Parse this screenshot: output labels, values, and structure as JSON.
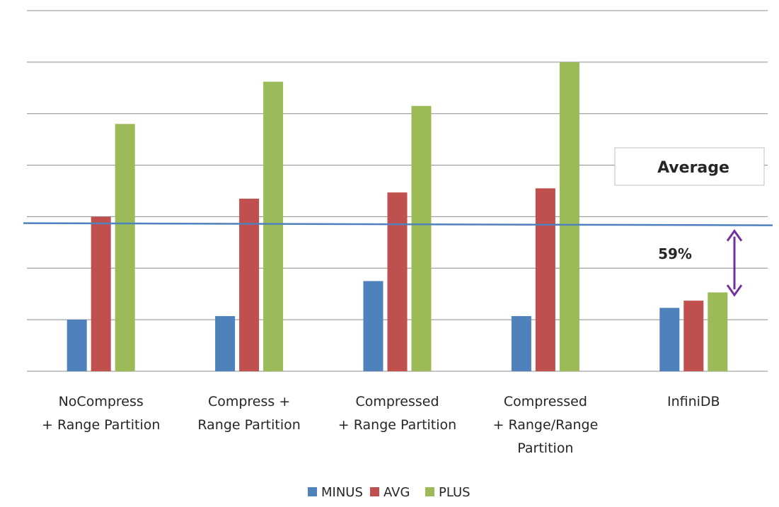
{
  "chart_data": {
    "type": "bar",
    "title": "",
    "xlabel": "",
    "ylabel": "",
    "ylim": [
      0,
      7
    ],
    "grid": true,
    "legend_position": "bottom-center",
    "categories": [
      [
        "NoCompress",
        "+ Range Partition"
      ],
      [
        "Compress +",
        "Range Partition"
      ],
      [
        "Compressed",
        "+ Range Partition"
      ],
      [
        "Compressed",
        "+ Range/Range",
        "Partition"
      ],
      [
        "InfiniDB"
      ]
    ],
    "series": [
      {
        "name": "MINUS",
        "color": "#4f81bd",
        "values": [
          1.0,
          1.07,
          1.75,
          1.07,
          1.23
        ]
      },
      {
        "name": "AVG",
        "color": "#c0504d",
        "values": [
          3.0,
          3.35,
          3.47,
          3.55,
          1.37
        ]
      },
      {
        "name": "PLUS",
        "color": "#9bbb59",
        "values": [
          4.8,
          5.62,
          5.15,
          6.0,
          1.53
        ]
      }
    ],
    "average_line": {
      "value": 2.86,
      "color": "#4f81bd"
    },
    "annotations": {
      "average_box_label": "Average",
      "difference_label": "59%",
      "arrow_color": "#7030a0"
    }
  }
}
